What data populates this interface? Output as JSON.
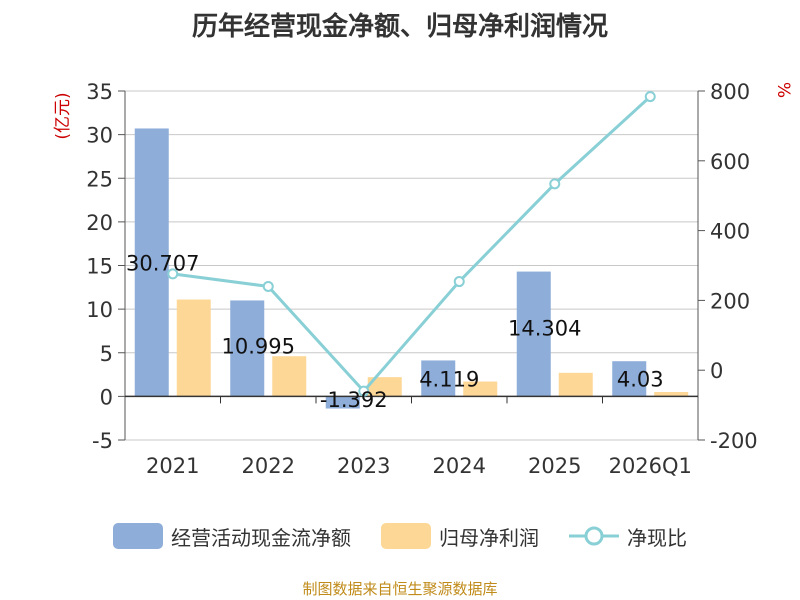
{
  "title": "历年经营现金净额、归母净利润情况",
  "source": "制图数据来自恒生聚源数据库",
  "colors": {
    "cash_flow": "#8eadd9",
    "net_profit": "#fdd795",
    "ratio": "#89d0d6",
    "axis_unit": "#cc0000"
  },
  "chart_data": {
    "type": "bar",
    "categories": [
      "2021",
      "2022",
      "2023",
      "2024",
      "2025",
      "2026Q1"
    ],
    "series": [
      {
        "name": "经营活动现金流净额",
        "type": "bar",
        "axis": "left",
        "values": [
          30.707,
          10.995,
          -1.392,
          4.119,
          14.304,
          4.03
        ],
        "labels": [
          "30.707",
          "10.995",
          "-1.392",
          "4.119",
          "14.304",
          "4.03"
        ]
      },
      {
        "name": "归母净利润",
        "type": "bar",
        "axis": "left",
        "values": [
          11.1,
          4.6,
          2.2,
          1.7,
          2.7,
          0.5
        ]
      },
      {
        "name": "净现比",
        "type": "line",
        "axis": "right",
        "values": [
          276,
          240,
          -60,
          254,
          534,
          784
        ]
      }
    ],
    "y_left": {
      "unit": "(亿元)",
      "min": -5,
      "max": 35,
      "ticks": [
        "35",
        "30",
        "25",
        "20",
        "15",
        "10",
        "5",
        "0",
        "-5"
      ]
    },
    "y_right": {
      "unit": "%",
      "min": -200,
      "max": 800,
      "ticks": [
        "800",
        "600",
        "400",
        "200",
        "0",
        "-200"
      ]
    },
    "grid": true,
    "legend": "bottom"
  }
}
